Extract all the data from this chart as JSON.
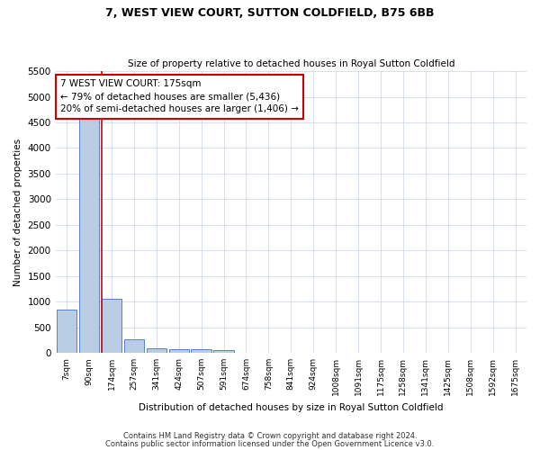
{
  "title": "7, WEST VIEW COURT, SUTTON COLDFIELD, B75 6BB",
  "subtitle": "Size of property relative to detached houses in Royal Sutton Coldfield",
  "xlabel": "Distribution of detached houses by size in Royal Sutton Coldfield",
  "ylabel": "Number of detached properties",
  "footnote1": "Contains HM Land Registry data © Crown copyright and database right 2024.",
  "footnote2": "Contains public sector information licensed under the Open Government Licence v3.0.",
  "annotation_title": "7 WEST VIEW COURT: 175sqm",
  "annotation_line1": "← 79% of detached houses are smaller (5,436)",
  "annotation_line2": "20% of semi-detached houses are larger (1,406) →",
  "bar_color": "#b8cce4",
  "bar_edge_color": "#4472c4",
  "highlight_color": "#cc0000",
  "categories": [
    "7sqm",
    "90sqm",
    "174sqm",
    "257sqm",
    "341sqm",
    "424sqm",
    "507sqm",
    "591sqm",
    "674sqm",
    "758sqm",
    "841sqm",
    "924sqm",
    "1008sqm",
    "1091sqm",
    "1175sqm",
    "1258sqm",
    "1341sqm",
    "1425sqm",
    "1508sqm",
    "1592sqm",
    "1675sqm"
  ],
  "values": [
    850,
    4620,
    1050,
    270,
    95,
    75,
    75,
    50,
    0,
    0,
    0,
    0,
    0,
    0,
    0,
    0,
    0,
    0,
    0,
    0,
    0
  ],
  "ylim": [
    0,
    5500
  ],
  "yticks": [
    0,
    500,
    1000,
    1500,
    2000,
    2500,
    3000,
    3500,
    4000,
    4500,
    5000,
    5500
  ],
  "red_line_bar_index": 2,
  "bar_width": 0.9
}
